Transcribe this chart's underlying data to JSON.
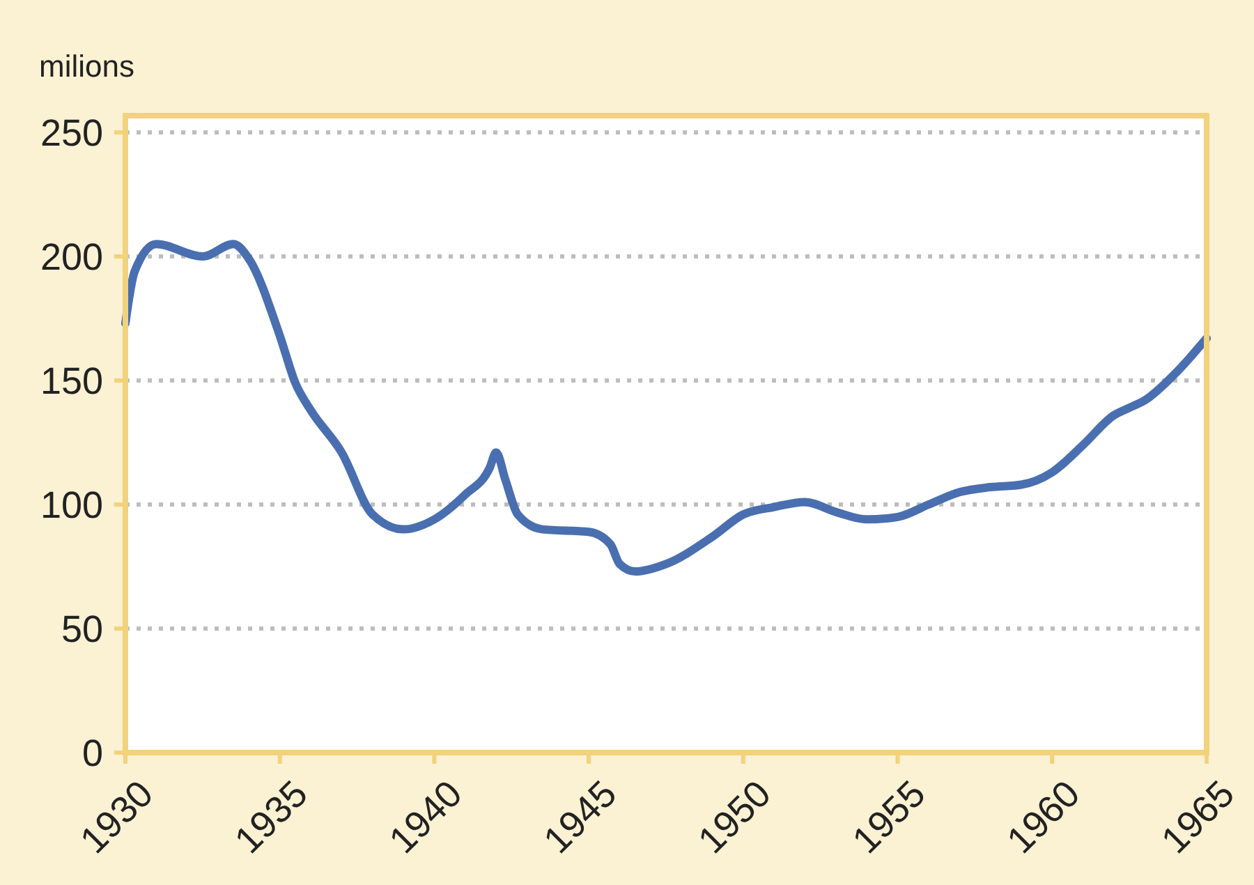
{
  "chart_data": {
    "type": "line",
    "ylabel": "milions",
    "x": [
      1930,
      1930.3,
      1931,
      1932.5,
      1933.5,
      1934,
      1935,
      1935.5,
      1936,
      1937,
      1938,
      1939,
      1940,
      1941,
      1941.8,
      1942,
      1942.3,
      1942.7,
      1943.5,
      1945,
      1945.7,
      1946,
      1946.5,
      1947.5,
      1949,
      1950,
      1951,
      1952,
      1953,
      1954,
      1955,
      1956,
      1957,
      1958,
      1959,
      1960,
      1961,
      1962,
      1962.5,
      1963,
      1964,
      1965
    ],
    "series": [
      {
        "color": "#4a6fb0",
        "values": [
          173,
          194,
          205,
          200,
          205,
          199,
          168,
          149,
          138,
          121,
          96,
          90,
          94,
          104,
          115,
          121,
          110,
          96,
          90,
          89,
          84,
          76,
          73,
          76,
          87,
          96,
          99,
          101,
          97,
          94,
          95,
          100,
          105,
          107,
          108,
          113,
          124,
          136,
          139,
          142,
          153,
          167
        ]
      }
    ],
    "xlim": [
      1930,
      1965
    ],
    "xticks": [
      1930,
      1935,
      1940,
      1945,
      1950,
      1955,
      1960,
      1965
    ],
    "ylim": [
      0,
      250
    ],
    "yticks": [
      0,
      50,
      100,
      150,
      200,
      250
    ],
    "grid": "y",
    "line_style": "solid",
    "marker": "none"
  }
}
